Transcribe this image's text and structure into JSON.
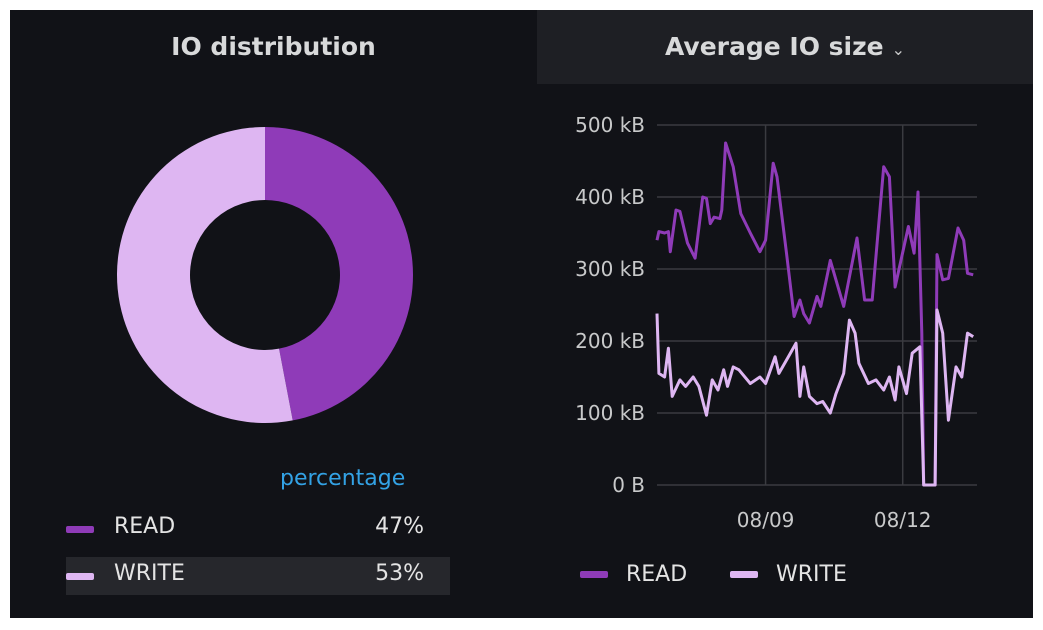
{
  "colors": {
    "read": "#8f3bb8",
    "write": "#deb6f2",
    "legend_header": "#33a2e5",
    "grid": "#3a3b40"
  },
  "left_panel": {
    "title": "IO distribution",
    "legend_header": "percentage",
    "items": [
      {
        "label": "READ",
        "value": "47%"
      },
      {
        "label": "WRITE",
        "value": "53%"
      }
    ]
  },
  "right_panel": {
    "title": "Average IO size",
    "title_icon": "chevron-down-icon",
    "legend": [
      {
        "label": "READ"
      },
      {
        "label": "WRITE"
      }
    ]
  },
  "chart_data": [
    {
      "type": "pie",
      "variant": "donut",
      "categories": [
        "READ",
        "WRITE"
      ],
      "values": [
        47,
        53
      ],
      "unit": "%",
      "legend_placement": "bottom"
    },
    {
      "type": "line",
      "ylim": [
        0,
        500
      ],
      "yunit": "kB",
      "yticks": [
        "0 B",
        "100 kB",
        "200 kB",
        "300 kB",
        "400 kB",
        "500 kB"
      ],
      "xticks": [
        "08/09",
        "08/12"
      ],
      "xlim": [
        "08/06 15:00",
        "08/13 15:00"
      ],
      "grid": true,
      "legend_placement": "bottom",
      "series": [
        {
          "name": "READ",
          "points": [
            [
              "08/06 15:00",
              340
            ],
            [
              "08/06 16:00",
              352
            ],
            [
              "08/06 19:00",
              350
            ],
            [
              "08/06 21:00",
              352
            ],
            [
              "08/06 22:00",
              324
            ],
            [
              "08/07 01:00",
              382
            ],
            [
              "08/07 03:00",
              380
            ],
            [
              "08/07 07:00",
              336
            ],
            [
              "08/07 11:00",
              315
            ],
            [
              "08/07 15:00",
              400
            ],
            [
              "08/07 17:00",
              398
            ],
            [
              "08/07 19:00",
              363
            ],
            [
              "08/07 21:00",
              372
            ],
            [
              "08/08 00:00",
              370
            ],
            [
              "08/08 01:00",
              382
            ],
            [
              "08/08 03:00",
              475
            ],
            [
              "08/08 07:00",
              442
            ],
            [
              "08/08 11:00",
              377
            ],
            [
              "08/08 16:00",
              350
            ],
            [
              "08/08 21:00",
              324
            ],
            [
              "08/09 00:00",
              340
            ],
            [
              "08/09 04:00",
              447
            ],
            [
              "08/09 06:00",
              428
            ],
            [
              "08/09 11:00",
              322
            ],
            [
              "08/09 15:00",
              234
            ],
            [
              "08/09 18:00",
              257
            ],
            [
              "08/09 20:00",
              238
            ],
            [
              "08/09 23:00",
              225
            ],
            [
              "08/10 03:00",
              262
            ],
            [
              "08/10 05:00",
              248
            ],
            [
              "08/10 10:00",
              312
            ],
            [
              "08/10 17:00",
              248
            ],
            [
              "08/11 00:00",
              343
            ],
            [
              "08/11 04:00",
              257
            ],
            [
              "08/11 08:00",
              257
            ],
            [
              "08/11 14:00",
              442
            ],
            [
              "08/11 17:00",
              428
            ],
            [
              "08/11 20:00",
              275
            ],
            [
              "08/12 03:00",
              359
            ],
            [
              "08/12 06:00",
              322
            ],
            [
              "08/12 08:00",
              407
            ],
            [
              "08/12 10:00",
              211
            ],
            [
              "08/12 11:00",
              0
            ],
            [
              "08/12 17:00",
              0
            ],
            [
              "08/12 18:00",
              320
            ],
            [
              "08/12 21:00",
              285
            ],
            [
              "08/13 00:00",
              287
            ],
            [
              "08/13 05:00",
              357
            ],
            [
              "08/13 08:00",
              340
            ],
            [
              "08/13 10:00",
              294
            ],
            [
              "08/13 13:00",
              292
            ]
          ]
        },
        {
          "name": "WRITE",
          "points": [
            [
              "08/06 15:00",
              238
            ],
            [
              "08/06 16:00",
              155
            ],
            [
              "08/06 19:00",
              150
            ],
            [
              "08/06 21:00",
              190
            ],
            [
              "08/06 23:00",
              123
            ],
            [
              "08/07 03:00",
              146
            ],
            [
              "08/07 06:00",
              137
            ],
            [
              "08/07 10:00",
              150
            ],
            [
              "08/07 13:00",
              137
            ],
            [
              "08/07 17:00",
              97
            ],
            [
              "08/07 20:00",
              146
            ],
            [
              "08/07 23:00",
              132
            ],
            [
              "08/08 02:00",
              160
            ],
            [
              "08/08 04:00",
              137
            ],
            [
              "08/08 07:00",
              164
            ],
            [
              "08/08 10:00",
              160
            ],
            [
              "08/08 16:00",
              141
            ],
            [
              "08/08 21:00",
              150
            ],
            [
              "08/09 00:00",
              141
            ],
            [
              "08/09 05:00",
              178
            ],
            [
              "08/09 07:00",
              155
            ],
            [
              "08/09 12:00",
              178
            ],
            [
              "08/09 16:00",
              197
            ],
            [
              "08/09 18:00",
              123
            ],
            [
              "08/09 20:00",
              164
            ],
            [
              "08/09 23:00",
              123
            ],
            [
              "08/10 03:00",
              113
            ],
            [
              "08/10 06:00",
              116
            ],
            [
              "08/10 10:00",
              100
            ],
            [
              "08/10 13:00",
              127
            ],
            [
              "08/10 17:00",
              155
            ],
            [
              "08/10 20:00",
              229
            ],
            [
              "08/10 23:00",
              211
            ],
            [
              "08/11 01:00",
              169
            ],
            [
              "08/11 06:00",
              141
            ],
            [
              "08/11 10:00",
              146
            ],
            [
              "08/11 14:00",
              132
            ],
            [
              "08/11 17:00",
              150
            ],
            [
              "08/11 20:00",
              118
            ],
            [
              "08/11 22:00",
              164
            ],
            [
              "08/12 02:00",
              127
            ],
            [
              "08/12 05:00",
              183
            ],
            [
              "08/12 09:00",
              192
            ],
            [
              "08/12 11:00",
              0
            ],
            [
              "08/12 17:00",
              0
            ],
            [
              "08/12 18:00",
              243
            ],
            [
              "08/12 21:00",
              211
            ],
            [
              "08/13 00:00",
              90
            ],
            [
              "08/13 04:00",
              164
            ],
            [
              "08/13 07:00",
              150
            ],
            [
              "08/13 10:00",
              211
            ],
            [
              "08/13 13:00",
              206
            ]
          ]
        }
      ]
    }
  ]
}
